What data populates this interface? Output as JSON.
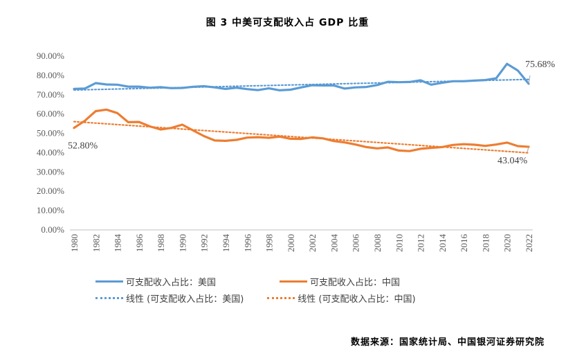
{
  "chart_data": {
    "type": "line",
    "title": "图 3  中美可支配收入占 GDP 比重",
    "xlabel": "",
    "ylabel": "",
    "ylim": [
      0,
      90
    ],
    "yticks": [
      "0.00%",
      "10.00%",
      "20.00%",
      "30.00%",
      "40.00%",
      "50.00%",
      "60.00%",
      "70.00%",
      "80.00%",
      "90.00%"
    ],
    "x": [
      1980,
      1981,
      1982,
      1983,
      1984,
      1985,
      1986,
      1987,
      1988,
      1989,
      1990,
      1991,
      1992,
      1993,
      1994,
      1995,
      1996,
      1997,
      1998,
      1999,
      2000,
      2001,
      2002,
      2003,
      2004,
      2005,
      2006,
      2007,
      2008,
      2009,
      2010,
      2011,
      2012,
      2013,
      2014,
      2015,
      2016,
      2017,
      2018,
      2019,
      2020,
      2021,
      2022
    ],
    "xtick_labels": [
      "1980",
      "1982",
      "1984",
      "1986",
      "1988",
      "1990",
      "1992",
      "1994",
      "1996",
      "1998",
      "2000",
      "2002",
      "2004",
      "2006",
      "2008",
      "2010",
      "2012",
      "2014",
      "2016",
      "2018",
      "2020",
      "2022"
    ],
    "series": [
      {
        "name": "可支配收入占比：美国",
        "color": "#5B9BD5",
        "style": "solid",
        "values": [
          73.0,
          73.2,
          76.0,
          75.3,
          75.2,
          74.2,
          74.2,
          73.6,
          73.9,
          73.4,
          73.5,
          74.1,
          74.4,
          73.8,
          73.0,
          73.6,
          72.9,
          72.4,
          73.3,
          72.3,
          72.6,
          73.8,
          74.9,
          74.8,
          74.8,
          73.2,
          73.8,
          74.0,
          75.0,
          76.7,
          76.5,
          76.6,
          77.5,
          75.2,
          76.2,
          77.0,
          77.0,
          77.3,
          77.6,
          78.5,
          86.0,
          82.5,
          75.68
        ]
      },
      {
        "name": "可支配收入占比：中国",
        "color": "#ED7D31",
        "style": "solid",
        "values": [
          52.8,
          56.5,
          61.5,
          62.3,
          60.5,
          55.8,
          55.9,
          53.6,
          52.0,
          52.8,
          54.5,
          51.5,
          48.6,
          46.3,
          46.1,
          46.6,
          47.8,
          48.0,
          47.7,
          48.3,
          47.2,
          47.1,
          47.9,
          47.4,
          46.0,
          45.3,
          44.2,
          42.9,
          42.2,
          42.7,
          41.1,
          40.8,
          42.0,
          42.5,
          42.9,
          44.0,
          44.4,
          44.1,
          43.5,
          44.2,
          45.2,
          43.4,
          43.04
        ]
      },
      {
        "name": "线性 (可支配收入占比：美国)",
        "color": "#5B9BD5",
        "style": "dotted",
        "trend_of": 0
      },
      {
        "name": "线性 (可支配收入占比：中国)",
        "color": "#ED7D31",
        "style": "dotted",
        "trend_of": 1
      }
    ],
    "annotations": [
      {
        "text": "75.68%",
        "series": 0,
        "x": 2022
      },
      {
        "text": "52.80%",
        "series": 1,
        "x": 1980
      },
      {
        "text": "43.04%",
        "series": 1,
        "x": 2022
      }
    ]
  },
  "legend": {
    "us": "可支配收入占比：美国",
    "cn": "可支配收入占比：中国",
    "us_trend": "线性 (可支配收入占比：美国)",
    "cn_trend": "线性 (可支配收入占比：中国)"
  },
  "source": "数据来源：国家统计局、中国银河证券研究院"
}
